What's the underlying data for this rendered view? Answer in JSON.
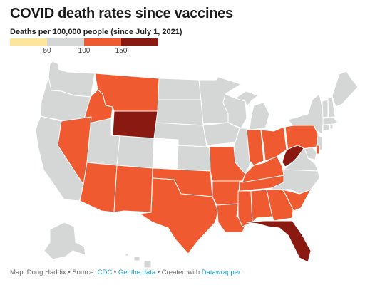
{
  "title": "COVID death rates since vaccines",
  "subtitle": "Deaths per 100,000 people (since July 1, 2021)",
  "legend": {
    "colors": [
      "#fde59c",
      "#d4d7d6",
      "#f05a30",
      "#8a1912"
    ],
    "ticks": [
      "50",
      "100",
      "150"
    ]
  },
  "state_colors": {
    "gray": "#d4d7d6",
    "orange": "#f05a30",
    "darkred": "#8a1912"
  },
  "footer": {
    "map_credit": "Map: Doug Haddix",
    "sep1": " • Source: ",
    "source_link": "CDC",
    "sep2": " • ",
    "data_link": "Get the data",
    "sep3": " • Created with ",
    "tool_link": "Datawrapper"
  }
}
